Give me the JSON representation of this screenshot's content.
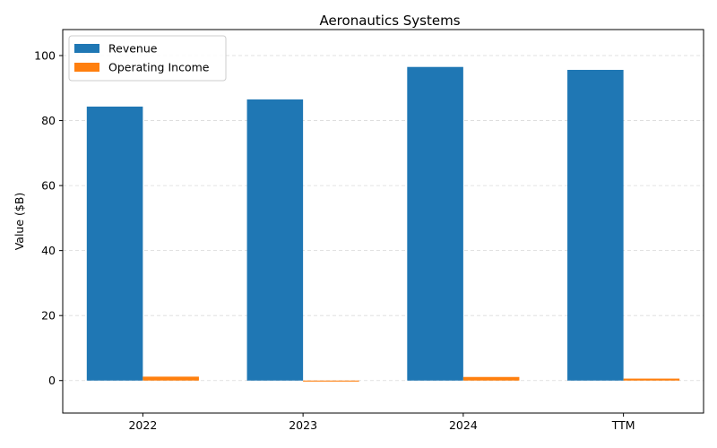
{
  "chart_data": {
    "type": "bar",
    "title": "Aeronautics Systems",
    "xlabel": "",
    "ylabel": "Value ($B)",
    "categories": [
      "2022",
      "2023",
      "2024",
      "TTM"
    ],
    "series": [
      {
        "name": "Revenue",
        "values": [
          84.3,
          86.5,
          96.5,
          95.6
        ],
        "color": "#1f77b4"
      },
      {
        "name": "Operating Income",
        "values": [
          1.2,
          -0.3,
          1.1,
          0.6
        ],
        "color": "#ff7f0e"
      }
    ],
    "ylim": [
      -10,
      108
    ],
    "yticks": [
      0,
      20,
      40,
      60,
      80,
      100
    ],
    "grid": true,
    "grid_axis": "y",
    "legend_position": "top-left"
  }
}
